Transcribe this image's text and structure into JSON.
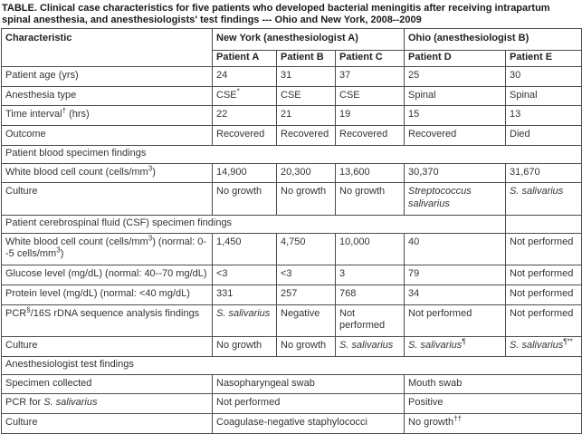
{
  "title": "TABLE. Clinical case characteristics for five patients who developed bacterial meningitis after receiving intrapartum spinal anesthesia, and anesthesiologists' test findings --- Ohio and New York, 2008--2009",
  "colors": {
    "border": "#4d4d4d",
    "text": "#333333",
    "background": "#ffffff"
  },
  "table": {
    "header": {
      "characteristic_label": "Characteristic",
      "groups": [
        {
          "label": "New York (anesthesiologist A)",
          "span": 3
        },
        {
          "label": "Ohio (anesthesiologist B)",
          "span": 2
        }
      ],
      "columns": [
        "Patient A",
        "Patient B",
        "Patient C",
        "Patient D",
        "Patient E"
      ]
    },
    "rows": [
      {
        "type": "data",
        "label": [
          "Patient age (yrs)"
        ],
        "cells": [
          "24",
          "31",
          "37",
          "25",
          "30"
        ]
      },
      {
        "type": "data",
        "label": [
          "Anesthesia type"
        ],
        "cells": [
          {
            "runs": [
              "CSE",
              {
                "t": "*",
                "sup": true
              }
            ]
          },
          "CSE",
          "CSE",
          "Spinal",
          "Spinal"
        ]
      },
      {
        "type": "data",
        "label": [
          "Time interval",
          {
            "t": "†",
            "sup": true
          },
          " (hrs)"
        ],
        "cells": [
          "22",
          "21",
          "19",
          "15",
          "13"
        ]
      },
      {
        "type": "data",
        "label": [
          "Outcome"
        ],
        "cells": [
          "Recovered",
          "Recovered",
          "Recovered",
          "Recovered",
          "Died"
        ]
      },
      {
        "type": "section",
        "label": [
          "Patient blood specimen findings"
        ],
        "colspan": 6
      },
      {
        "type": "data",
        "label": [
          "White blood cell count (cells/mm",
          {
            "t": "3",
            "sup": true
          },
          ")"
        ],
        "cells": [
          "14,900",
          "20,300",
          "13,600",
          "30,370",
          "31,670"
        ]
      },
      {
        "type": "data",
        "label": [
          "Culture"
        ],
        "cells": [
          "No growth",
          "No growth",
          "No growth",
          {
            "runs": [
              {
                "t": "Streptococcus salivarius",
                "i": true
              }
            ]
          },
          {
            "runs": [
              {
                "t": "S. salivarius",
                "i": true
              }
            ]
          }
        ]
      },
      {
        "type": "section",
        "label": [
          "Patient cerebrospinal fluid (CSF) specimen findings"
        ],
        "colspan": 5,
        "trailing_empty": 1
      },
      {
        "type": "data",
        "label": [
          "White blood cell count (cells/mm",
          {
            "t": "3",
            "sup": true
          },
          ") (normal: 0--5 cells/mm",
          {
            "t": "3",
            "sup": true
          },
          ")"
        ],
        "cells": [
          "1,450",
          "4,750",
          "10,000",
          "40",
          "Not performed"
        ]
      },
      {
        "type": "data",
        "label": [
          "Glucose level (mg/dL) (normal: 40--70 mg/dL)"
        ],
        "cells": [
          "<3",
          "<3",
          "3",
          "79",
          "Not performed"
        ]
      },
      {
        "type": "data",
        "label": [
          "Protein level (mg/dL) (normal: <40 mg/dL)"
        ],
        "cells": [
          "331",
          "257",
          "768",
          "34",
          "Not performed"
        ]
      },
      {
        "type": "data",
        "label": [
          "PCR",
          {
            "t": "§",
            "sup": true
          },
          "/16S rDNA sequence analysis findings"
        ],
        "cells": [
          {
            "runs": [
              {
                "t": "S. salivarius",
                "i": true
              }
            ]
          },
          "Negative",
          "Not performed",
          "Not performed",
          "Not performed"
        ]
      },
      {
        "type": "data",
        "label": [
          "Culture"
        ],
        "cells": [
          "No growth",
          "No growth",
          {
            "runs": [
              {
                "t": "S. salivarius",
                "i": true
              }
            ]
          },
          {
            "runs": [
              {
                "t": "S. salivarius",
                "i": true
              },
              {
                "t": "¶",
                "sup": true
              }
            ]
          },
          {
            "runs": [
              {
                "t": "S. salivarius",
                "i": true
              },
              {
                "t": "¶**",
                "sup": true
              }
            ]
          }
        ]
      },
      {
        "type": "section",
        "label": [
          "Anesthesiologist test findings"
        ],
        "colspan": 6
      },
      {
        "type": "data",
        "label": [
          "Specimen collected"
        ],
        "cells": [
          {
            "runs": [
              "Nasopharyngeal swab"
            ],
            "colspan": 3
          },
          {
            "runs": [
              "Mouth swab"
            ],
            "colspan": 2
          }
        ]
      },
      {
        "type": "data",
        "label": [
          "PCR for ",
          {
            "t": "S. salivarius",
            "i": true
          }
        ],
        "cells": [
          {
            "runs": [
              "Not performed"
            ],
            "colspan": 3
          },
          {
            "runs": [
              "Positive"
            ],
            "colspan": 2
          }
        ]
      },
      {
        "type": "data",
        "label": [
          "Culture"
        ],
        "cells": [
          {
            "runs": [
              "Coagulase-negative staphylococci"
            ],
            "colspan": 3
          },
          {
            "runs": [
              "No growth",
              {
                "t": "††",
                "sup": true
              }
            ],
            "colspan": 2
          }
        ]
      }
    ]
  }
}
